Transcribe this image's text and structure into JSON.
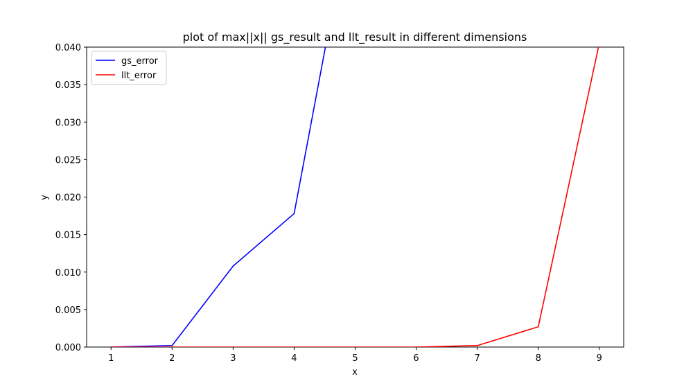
{
  "chart_data": {
    "type": "line",
    "title": "plot of max||x|| gs_result and llt_result in different dimensions",
    "xlabel": "x",
    "ylabel": "y",
    "xlim": [
      0.6,
      9.4
    ],
    "ylim": [
      0.0,
      0.04
    ],
    "x_ticks": [
      1,
      2,
      3,
      4,
      5,
      6,
      7,
      8,
      9
    ],
    "y_ticks": [
      0.0,
      0.005,
      0.01,
      0.015,
      0.02,
      0.025,
      0.03,
      0.035,
      0.04
    ],
    "y_tick_labels": [
      "0.000",
      "0.005",
      "0.010",
      "0.015",
      "0.020",
      "0.025",
      "0.030",
      "0.035",
      "0.040"
    ],
    "grid": false,
    "legend_position": "top-left",
    "series": [
      {
        "name": "gs_error",
        "color": "#0000ff",
        "x": [
          1,
          2,
          3,
          4,
          5
        ],
        "y": [
          0.0,
          0.0002,
          0.0108,
          0.0178,
          0.0611
        ]
      },
      {
        "name": "llt_error",
        "color": "#ff0000",
        "x": [
          1,
          2,
          3,
          4,
          5,
          6,
          7,
          8,
          9
        ],
        "y": [
          0.0,
          0.0,
          0.0,
          0.0,
          0.0,
          0.0,
          0.0002,
          0.0027,
          0.0405
        ]
      }
    ]
  }
}
